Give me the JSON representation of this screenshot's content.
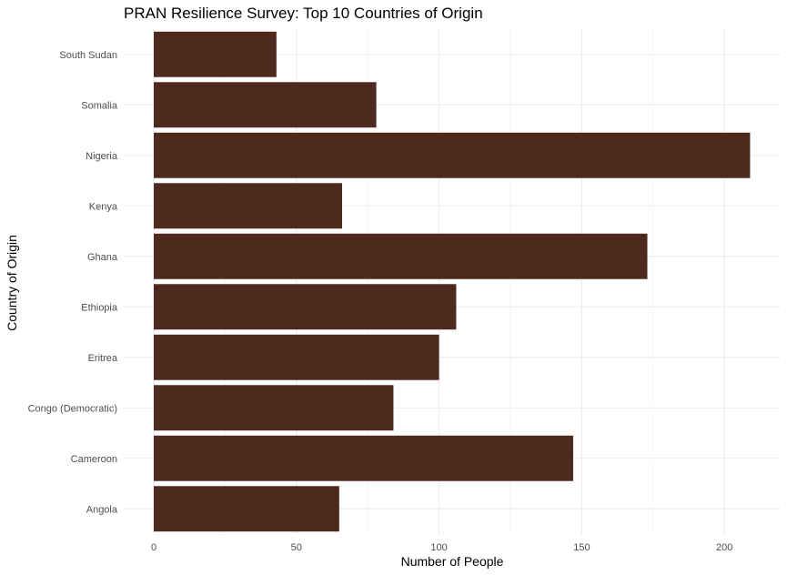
{
  "chart_data": {
    "type": "bar",
    "orientation": "horizontal",
    "title": "PRAN Resilience Survey: Top 10 Countries of Origin",
    "xlabel": "Number of People",
    "ylabel": "Country of Origin",
    "categories": [
      "Angola",
      "Cameroon",
      "Congo (Democratic)",
      "Eritrea",
      "Ethiopia",
      "Ghana",
      "Kenya",
      "Nigeria",
      "Somalia",
      "South Sudan"
    ],
    "values": [
      65,
      147,
      84,
      100,
      106,
      173,
      66,
      209,
      78,
      43
    ],
    "xlim": [
      0,
      220
    ],
    "xticks": [
      0,
      50,
      100,
      150,
      200
    ],
    "bar_color": "#4e2a1e",
    "grid": true,
    "legend": "none"
  }
}
